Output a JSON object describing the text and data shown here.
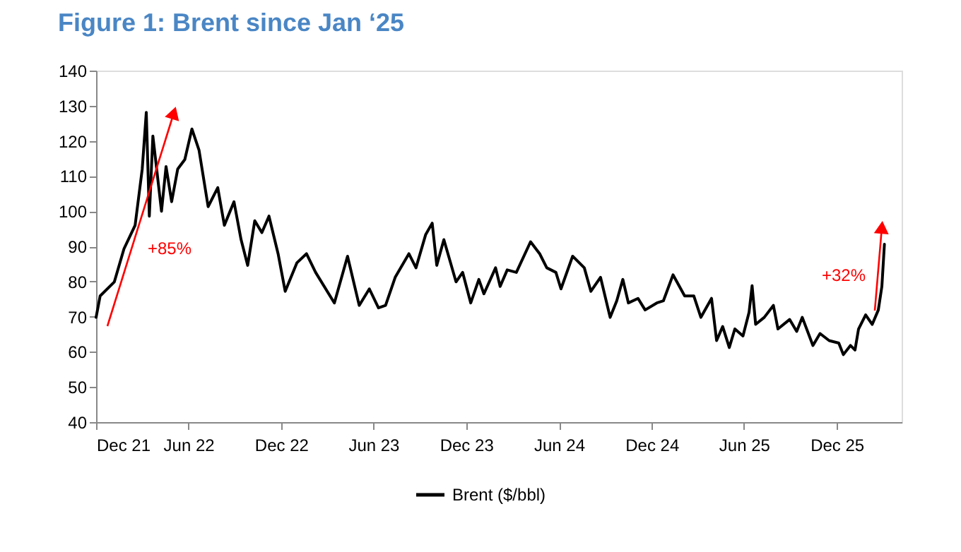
{
  "chart_data": {
    "type": "line",
    "title": "Figure 1: Brent since Jan ‘25",
    "x": [
      "2021-12-01",
      "2021-12-09",
      "2022-01-06",
      "2022-01-25",
      "2022-02-16",
      "2022-03-02",
      "2022-03-10",
      "2022-03-16",
      "2022-03-23",
      "2022-04-09",
      "2022-04-18",
      "2022-04-29",
      "2022-05-11",
      "2022-05-25",
      "2022-06-08",
      "2022-06-22",
      "2022-07-10",
      "2022-07-29",
      "2022-08-11",
      "2022-08-30",
      "2022-09-13",
      "2022-09-26",
      "2022-10-10",
      "2022-10-24",
      "2022-11-07",
      "2022-11-25",
      "2022-12-09",
      "2023-01-01",
      "2023-01-20",
      "2023-02-07",
      "2023-03-16",
      "2023-04-11",
      "2023-05-04",
      "2023-05-24",
      "2023-06-11",
      "2023-06-25",
      "2023-07-14",
      "2023-08-10",
      "2023-08-24",
      "2023-09-12",
      "2023-09-25",
      "2023-10-04",
      "2023-10-18",
      "2023-11-11",
      "2023-11-24",
      "2023-12-10",
      "2023-12-26",
      "2024-01-05",
      "2024-01-28",
      "2024-02-06",
      "2024-02-20",
      "2024-03-09",
      "2024-04-06",
      "2024-04-24",
      "2024-05-08",
      "2024-05-26",
      "2024-06-05",
      "2024-06-28",
      "2024-07-21",
      "2024-08-03",
      "2024-08-22",
      "2024-09-10",
      "2024-09-23",
      "2024-10-05",
      "2024-10-16",
      "2024-11-04",
      "2024-11-18",
      "2024-12-11",
      "2024-12-24",
      "2025-01-12",
      "2025-02-04",
      "2025-02-22",
      "2025-03-08",
      "2025-03-29",
      "2025-04-08",
      "2025-04-20",
      "2025-05-03",
      "2025-05-14",
      "2025-05-30",
      "2025-06-11",
      "2025-06-17",
      "2025-06-24",
      "2025-07-11",
      "2025-07-29",
      "2025-08-07",
      "2025-08-30",
      "2025-09-13",
      "2025-09-24",
      "2025-10-15",
      "2025-10-29",
      "2025-11-16",
      "2025-12-05",
      "2025-12-14",
      "2025-12-28",
      "2026-01-06",
      "2026-01-13",
      "2026-01-27",
      "2026-02-09",
      "2026-02-21",
      "2026-02-28",
      "2026-03-05"
    ],
    "series": [
      {
        "name": "Brent ($/bbl)",
        "color": "#000000",
        "values": [
          69.8,
          75.9,
          79.9,
          89.3,
          96,
          112,
          128.1,
          98.6,
          121.4,
          100,
          112.7,
          102.7,
          112,
          114.7,
          123.4,
          117.4,
          101.3,
          106.7,
          96,
          102.7,
          91.9,
          84.6,
          97.3,
          93.9,
          98.6,
          87.9,
          77.2,
          85.3,
          87.9,
          82.6,
          73.9,
          87.2,
          73.2,
          77.9,
          72.5,
          73.2,
          81.2,
          87.9,
          83.9,
          93.3,
          96.6,
          84.6,
          91.9,
          79.9,
          82.6,
          73.9,
          80.6,
          76.5,
          83.9,
          78.6,
          83.3,
          82.6,
          91.3,
          87.9,
          83.9,
          82.6,
          77.9,
          87.2,
          83.9,
          77.2,
          81.2,
          69.8,
          74.5,
          80.6,
          73.9,
          75.2,
          71.9,
          73.9,
          74.5,
          81.9,
          75.9,
          75.9,
          69.8,
          75.2,
          63.2,
          67.2,
          61.2,
          66.5,
          64.5,
          71.2,
          78.8,
          67.8,
          69.8,
          73.2,
          66.5,
          69.2,
          65.8,
          69.8,
          61.8,
          65.2,
          63.2,
          62.5,
          59.2,
          61.8,
          60.5,
          66.5,
          70.5,
          67.8,
          71.9,
          78.6,
          90.6
        ]
      }
    ],
    "xlim": [
      "2021-12-01",
      "2026-04-08"
    ],
    "xticks": [
      {
        "value": "2021-12-01",
        "label": "Dec 21"
      },
      {
        "value": "2022-06-01",
        "label": "Jun 22"
      },
      {
        "value": "2022-12-01",
        "label": "Dec 22"
      },
      {
        "value": "2023-06-01",
        "label": "Jun 23"
      },
      {
        "value": "2023-12-01",
        "label": "Dec 23"
      },
      {
        "value": "2024-06-01",
        "label": "Jun 24"
      },
      {
        "value": "2024-12-01",
        "label": "Dec 24"
      },
      {
        "value": "2025-06-01",
        "label": "Jun 25"
      },
      {
        "value": "2025-12-01",
        "label": "Dec 25"
      }
    ],
    "ylim": [
      40,
      140
    ],
    "yticks": [
      40,
      50,
      60,
      70,
      80,
      90,
      100,
      110,
      120,
      130,
      140
    ],
    "annotations": [
      "+85%",
      "+32%"
    ],
    "grid": false,
    "legend": "bottom",
    "line_style": "solid",
    "marker": "none"
  }
}
